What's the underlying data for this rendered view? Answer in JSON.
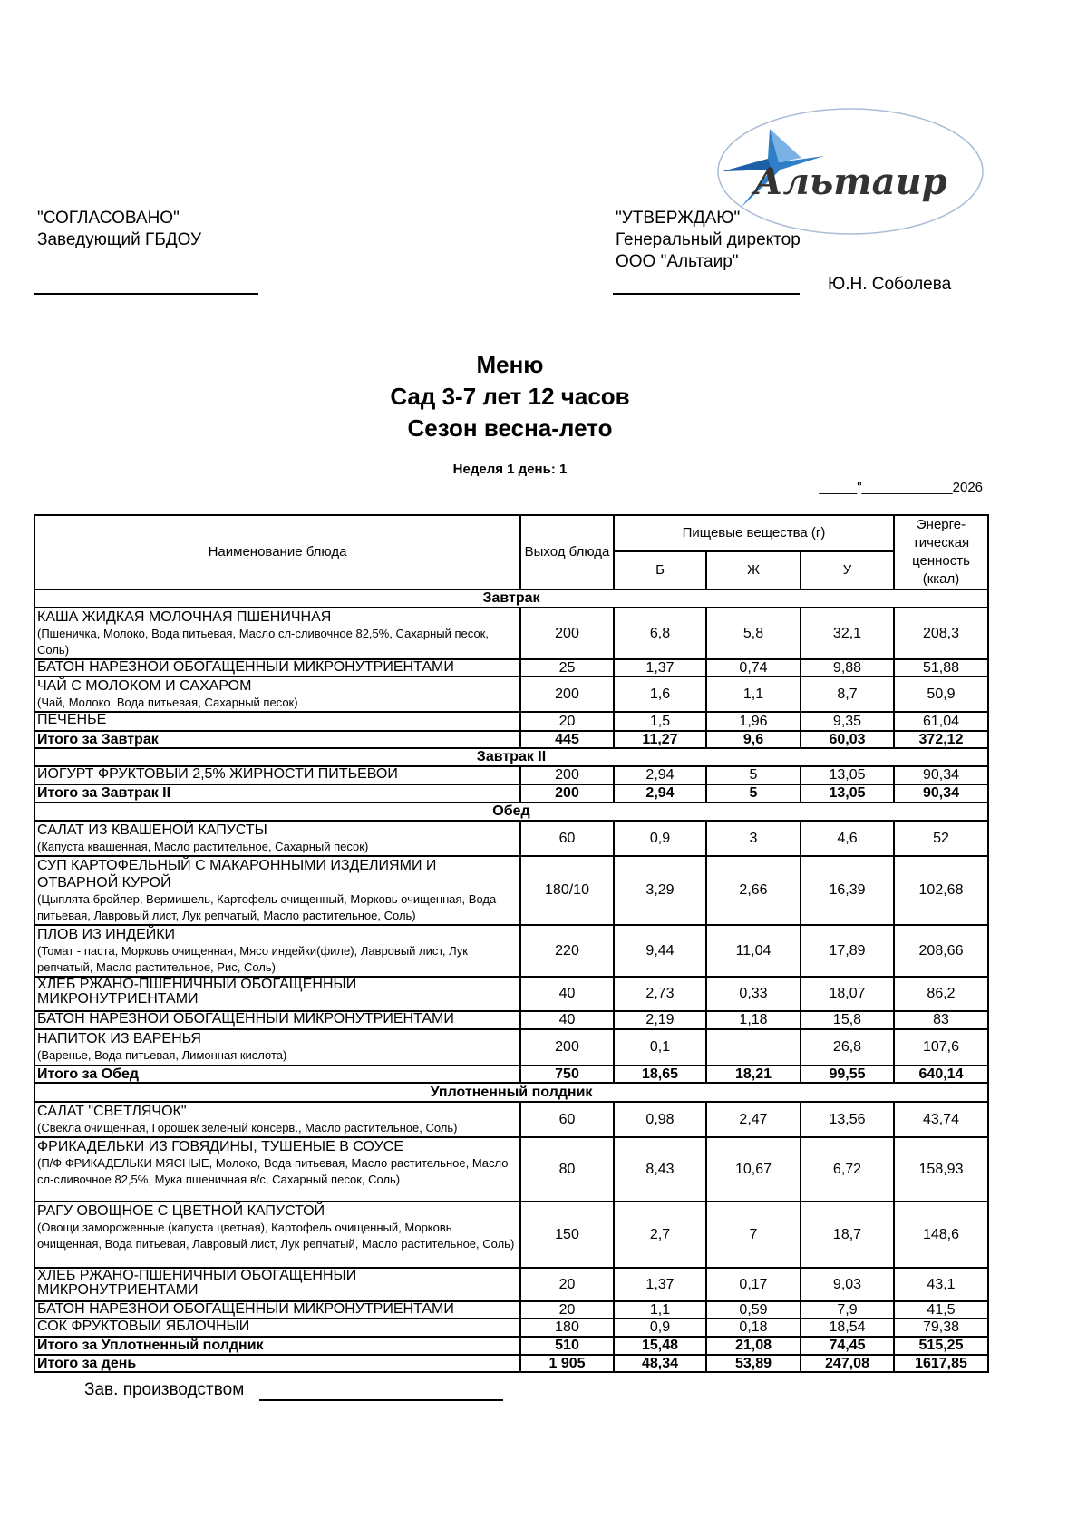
{
  "logo": {
    "text": "Альтаир",
    "colors": {
      "star": "#2f7fc8",
      "ellipse": "#a9bcd6",
      "text": "#333333"
    }
  },
  "approval_left": {
    "title": "\"СОГЛАСОВАНО\"",
    "position": "Заведующий ГБДОУ"
  },
  "approval_right": {
    "title": "\"УТВЕРЖДАЮ\"",
    "position": "Генеральный директор",
    "org": "ООО \"Альтаир\"",
    "signer": "Ю.Н. Соболева"
  },
  "titles": {
    "line1": "Меню",
    "line2": "Сад 3-7 лет 12 часов",
    "line3": "Сезон весна-лето"
  },
  "week_day": "Неделя 1  день: 1",
  "date_line": "_____\"____________2026",
  "table": {
    "headers": {
      "name": "Наименование блюда",
      "yield": "Выход блюда",
      "nutrients": "Пищевые вещества (г)",
      "protein": "Б",
      "fat": "Ж",
      "carbs": "У",
      "energy": "Энерге-тическая ценность (ккал)"
    },
    "rows": [
      {
        "type": "section",
        "name": "Завтрак"
      },
      {
        "type": "item",
        "name": "КАША ЖИДКАЯ МОЛОЧНАЯ ПШЕНИЧНАЯ",
        "ingredients": "(Пшеничка, Молоко, Вода питьевая, Масло сл-сливочное  82,5%, Сахарный песок, Соль)",
        "yield": "200",
        "protein": "6,8",
        "fat": "5,8",
        "carbs": "32,1",
        "energy": "208,3"
      },
      {
        "type": "item",
        "name": "БАТОН НАРЕЗНОЙ ОБОГАЩЕННЫЙ МИКРОНУТРИЕНТАМИ",
        "yield": "25",
        "protein": "1,37",
        "fat": "0,74",
        "carbs": "9,88",
        "energy": "51,88"
      },
      {
        "type": "item",
        "name": "ЧАЙ С МОЛОКОМ И САХАРОМ",
        "ingredients": "(Чай, Молоко, Вода питьевая, Сахарный песок)",
        "yield": "200",
        "protein": "1,6",
        "fat": "1,1",
        "carbs": "8,7",
        "energy": "50,9"
      },
      {
        "type": "item",
        "name": "ПЕЧЕНЬЕ",
        "yield": "20",
        "protein": "1,5",
        "fat": "1,96",
        "carbs": "9,35",
        "energy": "61,04"
      },
      {
        "type": "total",
        "name": "Итого за Завтрак",
        "yield": "445",
        "protein": "11,27",
        "fat": "9,6",
        "carbs": "60,03",
        "energy": "372,12"
      },
      {
        "type": "section",
        "name": "Завтрак II"
      },
      {
        "type": "item",
        "name": "ЙОГУРТ ФРУКТОВЫЙ 2,5% ЖИРНОСТИ ПИТЬЕВОЙ",
        "yield": "200",
        "protein": "2,94",
        "fat": "5",
        "carbs": "13,05",
        "energy": "90,34"
      },
      {
        "type": "total",
        "name": "Итого за Завтрак II",
        "yield": "200",
        "protein": "2,94",
        "fat": "5",
        "carbs": "13,05",
        "energy": "90,34"
      },
      {
        "type": "section",
        "name": "Обед"
      },
      {
        "type": "item",
        "name": "САЛАТ ИЗ КВАШЕНОЙ КАПУСТЫ",
        "ingredients": "(Капуста квашенная, Масло растительное, Сахарный песок)",
        "yield": "60",
        "protein": "0,9",
        "fat": "3",
        "carbs": "4,6",
        "energy": "52"
      },
      {
        "type": "item",
        "name": "СУП КАРТОФЕЛЬНЫЙ С МАКАРОННЫМИ ИЗДЕЛИЯМИ И ОТВАРНОЙ КУРОЙ",
        "ingredients": "(Цыплята бройлер, Вермишель, Картофель очищенный, Морковь очищенная, Вода питьевая, Лавровый лист, Лук репчатый, Масло растительное, Соль)",
        "yield": "180/10",
        "protein": "3,29",
        "fat": "2,66",
        "carbs": "16,39",
        "energy": "102,68"
      },
      {
        "type": "item",
        "name": "ПЛОВ ИЗ ИНДЕЙКИ",
        "ingredients": "(Томат - паста, Морковь очищенная, Мясо индейки(филе), Лавровый лист, Лук репчатый, Масло растительное, Рис, Соль)",
        "yield": "220",
        "protein": "9,44",
        "fat": "11,04",
        "carbs": "17,89",
        "energy": "208,66"
      },
      {
        "type": "item",
        "name": "ХЛЕБ РЖАНО-ПШЕНИЧНЫЙ ОБОГАЩЕННЫЙ МИКРОНУТРИЕНТАМИ",
        "yield": "40",
        "protein": "2,73",
        "fat": "0,33",
        "carbs": "18,07",
        "energy": "86,2"
      },
      {
        "type": "item",
        "name": "БАТОН НАРЕЗНОЙ ОБОГАЩЕННЫЙ МИКРОНУТРИЕНТАМИ",
        "yield": "40",
        "protein": "2,19",
        "fat": "1,18",
        "carbs": "15,8",
        "energy": "83"
      },
      {
        "type": "item",
        "name": "НАПИТОК ИЗ ВАРЕНЬЯ",
        "ingredients": "(Варенье, Вода питьевая, Лимонная кислота)",
        "yield": "200",
        "protein": "0,1",
        "fat": "",
        "carbs": "26,8",
        "energy": "107,6"
      },
      {
        "type": "total",
        "name": "Итого за Обед",
        "yield": "750",
        "protein": "18,65",
        "fat": "18,21",
        "carbs": "99,55",
        "energy": "640,14"
      },
      {
        "type": "section",
        "name": "Уплотненный полдник"
      },
      {
        "type": "item",
        "name": "САЛАТ \"СВЕТЛЯЧОК\"",
        "ingredients": "(Свекла очищенная, Горошек зелёный консерв., Масло растительное, Соль)",
        "yield": "60",
        "protein": "0,98",
        "fat": "2,47",
        "carbs": "13,56",
        "energy": "43,74"
      },
      {
        "type": "item",
        "name": "ФРИКАДЕЛЬКИ ИЗ ГОВЯДИНЫ, ТУШЕНЫЕ В СОУСЕ",
        "ingredients": "(П/Ф ФРИКАДЕЛЬКИ МЯСНЫЕ, Молоко, Вода питьевая, Масло растительное, Масло сл-сливочное  82,5%, Мука пшеничная в/с, Сахарный песок, Соль)",
        "yield": "80",
        "protein": "8,43",
        "fat": "10,67",
        "carbs": "6,72",
        "energy": "158,93"
      },
      {
        "type": "item",
        "name": "РАГУ ОВОЩНОЕ С ЦВЕТНОЙ КАПУСТОЙ",
        "ingredients": "(Овощи замороженные (капуста цветная), Картофель очищенный, Морковь очищенная, Вода питьевая, Лавровый лист, Лук репчатый, Масло растительное, Соль)",
        "yield": "150",
        "protein": "2,7",
        "fat": "7",
        "carbs": "18,7",
        "energy": "148,6"
      },
      {
        "type": "item",
        "name": "ХЛЕБ РЖАНО-ПШЕНИЧНЫЙ ОБОГАЩЕННЫЙ МИКРОНУТРИЕНТАМИ",
        "yield": "20",
        "protein": "1,37",
        "fat": "0,17",
        "carbs": "9,03",
        "energy": "43,1"
      },
      {
        "type": "item",
        "name": "БАТОН НАРЕЗНОЙ ОБОГАЩЕННЫЙ МИКРОНУТРИЕНТАМИ",
        "yield": "20",
        "protein": "1,1",
        "fat": "0,59",
        "carbs": "7,9",
        "energy": "41,5"
      },
      {
        "type": "item",
        "name": "СОК ФРУКТОВЫЙ ЯБЛОЧНЫЙ",
        "yield": "180",
        "protein": "0,9",
        "fat": "0,18",
        "carbs": "18,54",
        "energy": "79,38"
      },
      {
        "type": "total",
        "name": "Итого за Уплотненный полдник",
        "yield": "510",
        "protein": "15,48",
        "fat": "21,08",
        "carbs": "74,45",
        "energy": "515,25"
      },
      {
        "type": "total",
        "name": "Итого за день",
        "yield": "1 905",
        "protein": "48,34",
        "fat": "53,89",
        "carbs": "247,08",
        "energy": "1617,85"
      }
    ]
  },
  "footer": {
    "label": "Зав. производством"
  }
}
